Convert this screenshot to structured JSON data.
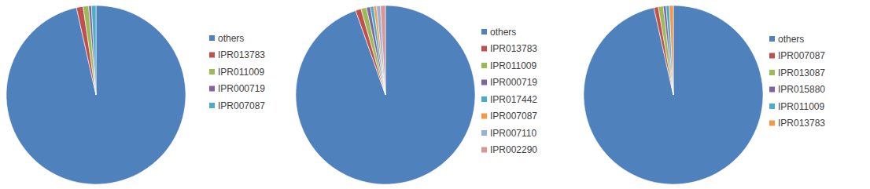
{
  "chart_data": [
    {
      "type": "pie",
      "legend": "right",
      "categories": [
        "others",
        "IPR013783",
        "IPR011009",
        "IPR000719",
        "IPR007087"
      ],
      "values": [
        96.5,
        1.2,
        1.0,
        0.5,
        0.8
      ],
      "colors": [
        "#4f81bd",
        "#c0504d",
        "#9bbb59",
        "#8064a2",
        "#4bacc6"
      ]
    },
    {
      "type": "pie",
      "legend": "right",
      "categories": [
        "others",
        "IPR013783",
        "IPR011009",
        "IPR000719",
        "IPR017442",
        "IPR007087",
        "IPR007110",
        "IPR002290"
      ],
      "values": [
        94.6,
        1.0,
        1.0,
        0.7,
        0.6,
        0.5,
        0.7,
        0.9
      ],
      "colors": [
        "#4f81bd",
        "#c0504d",
        "#9bbb59",
        "#8064a2",
        "#4bacc6",
        "#f79646",
        "#95b3d7",
        "#d99694"
      ]
    },
    {
      "type": "pie",
      "legend": "right",
      "categories": [
        "others",
        "IPR007087",
        "IPR013087",
        "IPR015880",
        "IPR011009",
        "IPR013783"
      ],
      "values": [
        96.5,
        0.8,
        0.9,
        0.5,
        0.6,
        0.7
      ],
      "colors": [
        "#4f81bd",
        "#c0504d",
        "#9bbb59",
        "#8064a2",
        "#4bacc6",
        "#f79646"
      ]
    }
  ]
}
